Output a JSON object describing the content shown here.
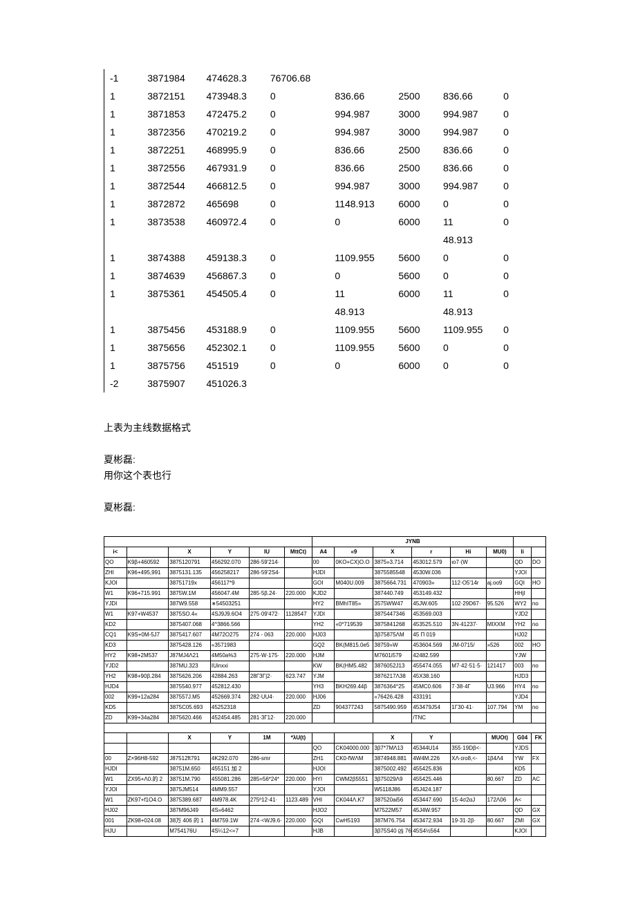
{
  "top_table": {
    "rows": [
      [
        "-1",
        "3871984",
        "474628.3",
        "76706.68",
        "",
        "",
        "",
        ""
      ],
      [
        "1",
        "3872151",
        "473948.3",
        "0",
        "836.66",
        "2500",
        "836.66",
        "0"
      ],
      [
        "1",
        "3871853",
        "472475.2",
        "0",
        "994.987",
        "3000",
        "994.987",
        "0"
      ],
      [
        "1",
        "3872356",
        "470219.2",
        "0",
        "994.987",
        "3000",
        "994.987",
        "0"
      ],
      [
        "1",
        "3872251",
        "468995.9",
        "0",
        "836.66",
        "2500",
        "836.66",
        "0"
      ],
      [
        "1",
        "3872556",
        "467931.9",
        "0",
        "836.66",
        "2500",
        "836.66",
        "0"
      ],
      [
        "1",
        "3872544",
        "466812.5",
        "0",
        "994.987",
        "3000",
        "994.987",
        "0"
      ],
      [
        "1",
        "3872872",
        "465698",
        "0",
        "1148.913",
        "6000",
        "0",
        "0"
      ],
      [
        "1",
        "3873538",
        "460972.4",
        "0",
        "0",
        "6000",
        "11",
        "0"
      ],
      [
        "",
        "",
        "",
        "",
        "",
        "",
        "48.913",
        ""
      ],
      [
        "1",
        "3874388",
        "459138.3",
        "0",
        "1109.955",
        "5600",
        "0",
        "0"
      ],
      [
        "1",
        "3874639",
        "456867.3",
        "0",
        "0",
        "5600",
        "0",
        "0"
      ],
      [
        "1",
        "3875361",
        "454505.4",
        "0",
        "11",
        "6000",
        "11",
        "0"
      ],
      [
        "",
        "",
        "",
        "",
        "48.913",
        "",
        "48.913",
        ""
      ],
      [
        "1",
        "3875456",
        "453188.9",
        "0",
        "1109.955",
        "5600",
        "1109.955",
        "0"
      ],
      [
        "1",
        "3875656",
        "452302.1",
        "0",
        "1109.955",
        "5600",
        "0",
        "0"
      ],
      [
        "1",
        "3875756",
        "451519",
        "0",
        "0",
        "6000",
        "0",
        "0"
      ],
      [
        "-2",
        "3875907",
        "451026.3",
        "",
        "",
        "",
        "",
        ""
      ]
    ]
  },
  "notes": {
    "line1": "上表为主线数据格式",
    "name1": "夏彬磊:",
    "line2": "用你这个表也行",
    "name2": "夏彬磊:"
  },
  "small_table": {
    "group_header_center": "JYNB",
    "headers": [
      "i<",
      "",
      "X",
      "Y",
      "IU",
      "MttCt)",
      "A4",
      "«9",
      "X",
      "r",
      "Hi",
      "MU0)",
      "li",
      ""
    ],
    "rows": [
      [
        "QO",
        "K9β+460592",
        "3875120791",
        "456292.070",
        "286·59'214·",
        "",
        "00",
        "0KO+CX)O.O",
        "3875»3.714",
        "453012.579",
        "ιo7·(W",
        "",
        "QD",
        "DO"
      ],
      [
        "ZHI",
        "K96+495,991",
        "3875131.135",
        "456258217",
        "286·59'2S4·",
        "",
        "HJDI",
        "",
        "3875585548",
        "4530W.036",
        "",
        "",
        "YJOI",
        ""
      ],
      [
        "KJOI",
        "",
        "38751719x",
        "456117*9",
        "",
        "",
        "GOI",
        "M040U.009",
        "3875664.731",
        "470903»",
        "112·O5'14r",
        "aj.oo9",
        "GQI",
        "HO"
      ],
      [
        "W1",
        "K96+715.991",
        "3875W.1M",
        "456047.4M",
        "285·5β.24·",
        "220.000",
        "KJD2",
        "",
        "387440.749",
        "453149.432",
        "",
        "",
        "HHjI",
        ""
      ],
      [
        "YJDI",
        "",
        "387W9.558",
        "∗54503251",
        "",
        "",
        "HY2",
        "BMhIT85»",
        "3575WW47",
        "45JW.605",
        "102·29D67·",
        "95.526",
        "WY2",
        "no"
      ],
      [
        "W1",
        "K97+W4537",
        "3875SO.4«",
        "4SJ9J9.6O4",
        "275·09'472·",
        "1128547",
        "YJDI",
        "",
        "3875447346",
        "453569.003",
        "",
        "",
        "YJD2",
        ""
      ],
      [
        "KD2",
        "",
        "3875407.068",
        "4^3866.566",
        "",
        "",
        "YH2",
        "«0*719539",
        "3875841268",
        "453525.510",
        "3N·41237·",
        "MIXXM",
        "YH2",
        "no"
      ],
      [
        "CQ1",
        "K9S+0M-5J7",
        "3875417.607",
        "4M72O275",
        "274 - 063",
        "220.000",
        "HJ03",
        "",
        "3β75875ΛM",
        "45 Π 019",
        "",
        "",
        "HJ02",
        ""
      ],
      [
        "KD3",
        "",
        "3875428.126",
        "«3571983",
        "",
        "",
        "GQ2",
        "BK(M815.0e5",
        "38759»W",
        "453604.569",
        "JM-0715/",
        "»526",
        "002",
        "HO"
      ],
      [
        "HY2",
        "K98+2M537",
        "J87MJ4Λ21",
        "4M50a%3",
        "275·W·175·",
        "220.000",
        "HJM",
        "",
        "M7601i579",
        "42482.599",
        "",
        "",
        "YJW",
        ""
      ],
      [
        "YJD2",
        "",
        "387MU.323",
        "IUinxxi",
        "",
        "",
        "KW",
        "BK(HM5.482",
        "3876052J13",
        "455474.055",
        "M7·42·51·5·",
        "121417",
        "003",
        "no"
      ],
      [
        "YH2",
        "K98+90β.284",
        "3875626.206",
        "42884.263",
        "28ГЗГ|2·",
        "623.747",
        "YJM",
        "",
        "3876217Λ38",
        "45X38.160",
        "",
        "",
        "HJD3",
        ""
      ],
      [
        "HJD4",
        "",
        "3875540.977",
        "452812.430",
        "",
        "",
        "YH3",
        "BKH269.44β",
        "3876364^25",
        "45MC0.606",
        "7·38·4Г",
        "U3.966",
        "HY4",
        "no"
      ],
      [
        "002",
        "K99+12a284",
        "387557J.M5",
        "452669.374",
        "282·UU4·",
        "220.000",
        "HJ06",
        "",
        "«76426.428",
        "433191",
        "",
        "",
        "YJD4",
        ""
      ],
      [
        "KD5",
        "",
        "3875C05.693",
        "45252318",
        "",
        "",
        "ZD",
        "904377243",
        "5875490.959",
        "453479J54",
        "1Γ30·41·",
        "107.794",
        "YM",
        "no"
      ],
      [
        "ZD",
        "K99+34a284",
        "3875620.466",
        "452454.485",
        "281·3Г12·",
        "220.000",
        "",
        "",
        "",
        "/TNC",
        "",
        "",
        "",
        ""
      ]
    ],
    "mid_headers": [
      "",
      "",
      "X",
      "Y",
      "1M",
      "*λU(t)",
      "",
      "",
      "X",
      "Y",
      "",
      "MUOt)",
      "G04",
      "FK"
    ],
    "rows2": [
      [
        "",
        "",
        "",
        "",
        "",
        "",
        "QO",
        "CK04000.000",
        "3β7*7MΛ13",
        "45344U14",
        "355·19Dβ<·",
        "",
        "YJDS",
        ""
      ],
      [
        "00",
        "Z×96H8-592",
        "J87512ft791",
        "4K292.070",
        "286-smr",
        "",
        "ZH1",
        "CK0-fWΛM",
        "3874948.881",
        "4W4M.226",
        "XΛ-ɪro8,<-",
        "1β4Λ4",
        "YW",
        "FX"
      ],
      [
        "HJDI",
        "",
        "38751M.650",
        "455151 加 2",
        "",
        "",
        "HJOI",
        "",
        "3875002.492",
        "455425.836",
        "",
        "",
        "KD5",
        ""
      ],
      [
        "W1",
        "ZX95+Λ0.的 2",
        "38751M.790",
        "455081.286",
        "285=56*24*",
        "220.000",
        "HYI",
        "CWM2β5551",
        "3β75029Λ9",
        "455425.446",
        "",
        "80.667",
        "ZD",
        "AC"
      ],
      [
        "YJOI",
        "",
        "3875JM514",
        "4MM9.557",
        "",
        "",
        "YJOI",
        "",
        "W5118J86",
        "45J424.187",
        "",
        "",
        "",
        ""
      ],
      [
        "W1",
        "ZK97+f1O4.O",
        "3875389.687",
        "4M978.4K",
        "275º12·41·",
        "1123.489",
        "VHI",
        "CK044Λ.K7",
        "387520ai56",
        "453447.690",
        "15·4σ2αJ",
        "172Λ06",
        "A<",
        ""
      ],
      [
        "HJ02",
        "",
        "387M96J49",
        "4S»6462",
        "",
        "",
        "HJO2",
        "",
        "M7522M57",
        "45J4W.957",
        "",
        "",
        "QD",
        "GX"
      ],
      [
        "001",
        "ZK98+024.08",
        "38万 406 的 1",
        "4M759.1W",
        "274·<WJ9.6·",
        "220.000",
        "GQI",
        "CwH5193",
        "387M76.754",
        "453472.934",
        "19·31·2β·",
        "80.667",
        "ZMI",
        "GX"
      ],
      [
        "HJU",
        "",
        "M754176U",
        "4S¼12<=7",
        "",
        "",
        "HJB",
        "",
        "3β75S40 凶 76",
        "45S4½564",
        "",
        "",
        "KJOI",
        ""
      ]
    ]
  }
}
